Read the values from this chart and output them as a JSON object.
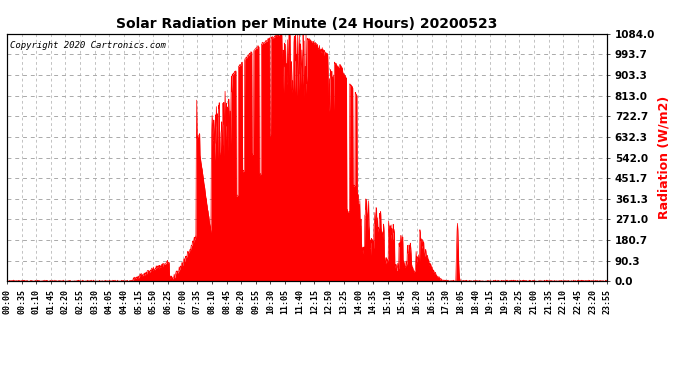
{
  "title": "Solar Radiation per Minute (24 Hours) 20200523",
  "ylabel": "Radiation (W/m2)",
  "copyright_text": "Copyright 2020 Cartronics.com",
  "ylabel_color": "#ff0000",
  "fill_color": "#ff0000",
  "line_color": "#ff0000",
  "bg_color": "#ffffff",
  "grid_color": "#aaaaaa",
  "ymax": 1084.0,
  "ymin": 0.0,
  "yticks": [
    0.0,
    90.3,
    180.7,
    271.0,
    361.3,
    451.7,
    542.0,
    632.3,
    722.7,
    813.0,
    903.3,
    993.7,
    1084.0
  ],
  "total_minutes": 1440,
  "x_tick_labels": [
    "00:00",
    "00:35",
    "01:10",
    "01:45",
    "02:20",
    "02:55",
    "03:30",
    "04:05",
    "04:40",
    "05:15",
    "05:50",
    "06:25",
    "07:00",
    "07:35",
    "08:10",
    "08:45",
    "09:20",
    "09:55",
    "10:30",
    "11:05",
    "11:40",
    "12:15",
    "12:50",
    "13:25",
    "14:00",
    "14:35",
    "15:10",
    "15:45",
    "16:20",
    "16:55",
    "17:30",
    "18:05",
    "18:40",
    "19:15",
    "19:50",
    "20:25",
    "21:00",
    "21:35",
    "22:10",
    "22:45",
    "23:20",
    "23:55"
  ]
}
